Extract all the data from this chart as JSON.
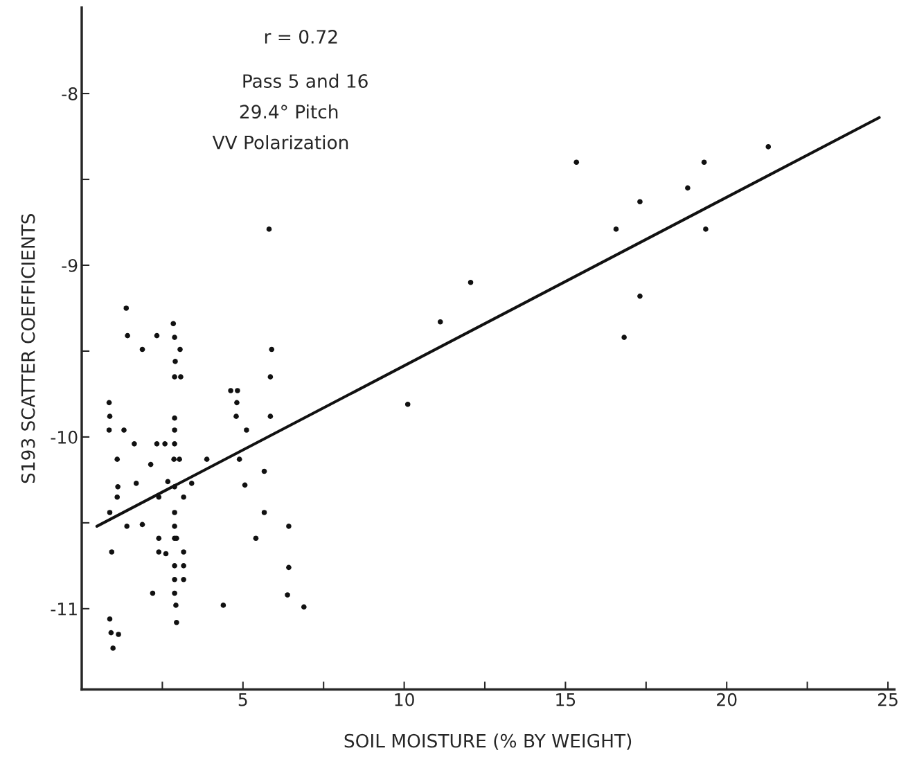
{
  "chart_data": {
    "type": "scatter",
    "xlabel": "SOIL MOISTURE (% BY WEIGHT)",
    "ylabel": "S193 SCATTER COEFFICIENTS",
    "annotations": [
      "r = 0.72",
      "Pass 5 and 16",
      "29.4° Pitch",
      "VV Polarization"
    ],
    "xlim": [
      0,
      25.2
    ],
    "ylim": [
      -11.47,
      -7.5
    ],
    "xticks": [
      {
        "value": 2.5,
        "label": null
      },
      5,
      {
        "value": 7.5,
        "label": null
      },
      10,
      {
        "value": 12.5,
        "label": null
      },
      15,
      {
        "value": 17.5,
        "label": null
      },
      20,
      {
        "value": 22.5,
        "label": null
      },
      25
    ],
    "yticks": [
      -8,
      {
        "value": -8.5,
        "label": null
      },
      -9,
      {
        "value": -9.5,
        "label": null
      },
      -10,
      {
        "value": -10.5,
        "label": null
      },
      -11
    ],
    "grid": false,
    "series": [
      {
        "color": "#111111",
        "marker": "circle",
        "x": [
          0.85,
          0.87,
          0.85,
          0.87,
          0.93,
          0.87,
          0.91,
          1.14,
          0.97,
          1.1,
          1.12,
          1.1,
          1.31,
          1.38,
          1.42,
          1.4,
          1.63,
          1.69,
          1.88,
          1.88,
          2.14,
          2.2,
          2.33,
          2.33,
          2.39,
          2.39,
          2.39,
          2.58,
          2.61,
          2.67,
          2.84,
          2.88,
          2.9,
          2.88,
          2.88,
          2.88,
          2.88,
          2.86,
          2.88,
          2.88,
          2.88,
          2.88,
          2.88,
          2.88,
          2.88,
          2.92,
          2.94,
          2.94,
          3.05,
          3.07,
          3.03,
          3.16,
          3.16,
          3.16,
          3.16,
          3.41,
          3.88,
          4.39,
          4.62,
          4.83,
          4.81,
          4.79,
          4.89,
          5.11,
          5.06,
          5.4,
          5.66,
          5.66,
          5.81,
          5.89,
          5.85,
          5.85,
          6.42,
          6.42,
          6.38,
          6.89,
          10.11,
          11.12,
          12.06,
          15.34,
          16.57,
          17.31,
          17.31,
          16.82,
          18.79,
          19.3,
          19.35,
          21.29
        ],
        "values": [
          -9.8,
          -9.88,
          -9.96,
          -10.44,
          -10.67,
          -11.06,
          -11.14,
          -11.15,
          -11.23,
          -10.13,
          -10.29,
          -10.35,
          -9.96,
          -9.25,
          -9.41,
          -10.52,
          -10.04,
          -10.27,
          -9.49,
          -10.51,
          -10.16,
          -10.91,
          -9.41,
          -10.04,
          -10.35,
          -10.59,
          -10.67,
          -10.04,
          -10.68,
          -10.26,
          -9.34,
          -9.42,
          -9.56,
          -9.65,
          -9.89,
          -9.96,
          -10.04,
          -10.13,
          -10.29,
          -10.44,
          -10.52,
          -10.59,
          -10.75,
          -10.83,
          -10.91,
          -10.98,
          -11.08,
          -10.59,
          -9.49,
          -9.65,
          -10.13,
          -10.35,
          -10.67,
          -10.75,
          -10.83,
          -10.27,
          -10.13,
          -10.98,
          -9.73,
          -9.73,
          -9.8,
          -9.88,
          -10.13,
          -9.96,
          -10.28,
          -10.59,
          -10.2,
          -10.44,
          -8.79,
          -9.49,
          -9.65,
          -9.88,
          -10.52,
          -10.76,
          -10.92,
          -10.99,
          -9.81,
          -9.33,
          -9.1,
          -8.4,
          -8.79,
          -8.63,
          -9.18,
          -9.42,
          -8.55,
          -8.4,
          -8.79,
          -8.31
        ]
      },
      {
        "type": "line",
        "color": "#111111",
        "line_style": "solid",
        "x": [
          0.47,
          24.73
        ],
        "values": [
          -10.52,
          -8.14
        ]
      }
    ]
  }
}
